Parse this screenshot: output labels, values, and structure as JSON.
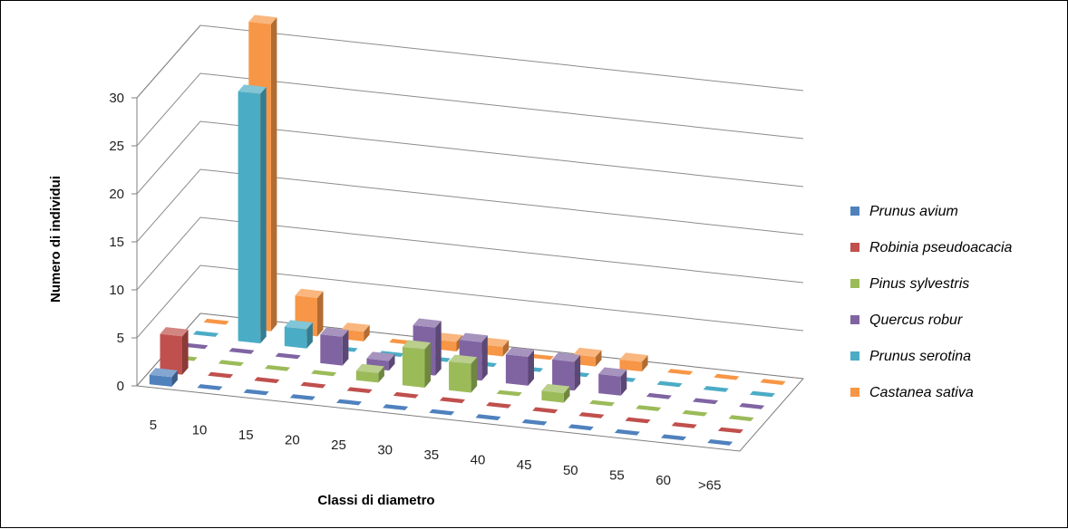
{
  "chart_data": {
    "type": "bar",
    "style": "3d-clustered-column",
    "categories": [
      "5",
      "10",
      "15",
      "20",
      "25",
      "30",
      "35",
      "40",
      "45",
      "50",
      "55",
      "60",
      ">65"
    ],
    "xlabel": "Classi di diametro",
    "ylabel": "Numero di individui",
    "ylim": [
      0,
      30
    ],
    "yticks": [
      0,
      5,
      10,
      15,
      20,
      25,
      30
    ],
    "grid": true,
    "legend_position": "right",
    "series": [
      {
        "name": "Prunus avium",
        "color": "#4F81BD",
        "values": [
          1,
          0,
          0,
          0,
          0,
          0,
          0,
          0,
          0,
          0,
          0,
          0,
          0
        ]
      },
      {
        "name": "Robinia pseudoacacia",
        "color": "#C0504D",
        "values": [
          4,
          0,
          0,
          0,
          0,
          0,
          0,
          0,
          0,
          0,
          0,
          0,
          0
        ]
      },
      {
        "name": "Pinus sylvestris",
        "color": "#9BBB59",
        "values": [
          0,
          0,
          0,
          0,
          1,
          4,
          3,
          0,
          1,
          0,
          0,
          0,
          0
        ]
      },
      {
        "name": "Quercus robur",
        "color": "#8064A2",
        "values": [
          0,
          0,
          0,
          3,
          1,
          5,
          4,
          3,
          3,
          2,
          0,
          0,
          0
        ]
      },
      {
        "name": "Prunus serotina",
        "color": "#4BACC6",
        "values": [
          0,
          26,
          2,
          0,
          0,
          0,
          0,
          0,
          0,
          0,
          0,
          0,
          0
        ]
      },
      {
        "name": "Castanea sativa",
        "color": "#F79646",
        "values": [
          0,
          32,
          4,
          1,
          0,
          1,
          1,
          0,
          1,
          1,
          0,
          0,
          0
        ]
      }
    ]
  }
}
